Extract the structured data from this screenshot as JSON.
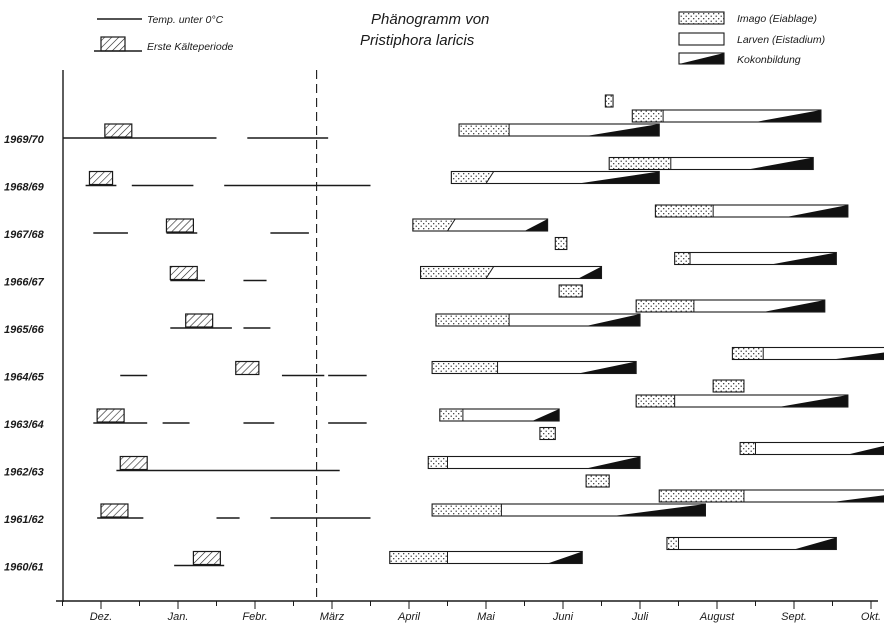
{
  "chart_data": {
    "type": "bar",
    "title": "Phänogramm von",
    "subtitle": "Pristiphora laricis",
    "xlabel": "",
    "ylabel": "",
    "x_unit": "month (Dez. = 0)",
    "xlim": [
      -0.6,
      10.7
    ],
    "months": [
      "Dez.",
      "Jan.",
      "Febr.",
      "März",
      "April",
      "Mai",
      "Juni",
      "Juli",
      "August",
      "Sept.",
      "Okt."
    ],
    "divider_at": 2.8,
    "legend": {
      "temp": "Temp. unter 0°C",
      "kaelte": "Erste Kälteperiode",
      "imago": "Imago (Eiablage)",
      "larven": "Larven (Eistadium)",
      "kokon": "Kokonbildung"
    },
    "series": [
      {
        "label": "1969/70",
        "temp": [
          [
            -0.5,
            1.5
          ],
          [
            1.9,
            2.95
          ]
        ],
        "kaelte": [
          0.05,
          0.4
        ],
        "gens": [
          {
            "row": 0,
            "start": 4.65,
            "split": 5.3,
            "diag": 5.3,
            "ramp": 6.3,
            "end": 7.25
          },
          {
            "row": 1,
            "start": 6.9,
            "split": 7.3,
            "diag": 7.3,
            "ramp": 8.5,
            "end": 9.35
          }
        ],
        "extra": [
          [
            6.55,
            6.65
          ]
        ]
      },
      {
        "label": "1968/69",
        "temp": [
          [
            -0.2,
            0.2
          ],
          [
            0.4,
            1.2
          ],
          [
            1.6,
            3.5
          ]
        ],
        "kaelte": [
          -0.15,
          0.15
        ],
        "gens": [
          {
            "row": 0,
            "start": 4.55,
            "split": 5.1,
            "diag": 5.0,
            "ramp": 6.2,
            "end": 7.25
          },
          {
            "row": 1,
            "start": 6.6,
            "split": 7.4,
            "diag": 7.4,
            "ramp": 8.4,
            "end": 9.25
          }
        ],
        "extra": []
      },
      {
        "label": "1967/68",
        "temp": [
          [
            -0.1,
            0.35
          ],
          [
            0.85,
            1.25
          ],
          [
            2.2,
            2.7
          ]
        ],
        "kaelte": [
          0.85,
          1.2
        ],
        "gens": [
          {
            "row": 0,
            "start": 4.05,
            "split": 4.6,
            "diag": 4.5,
            "ramp": 5.5,
            "end": 5.8
          },
          {
            "row": 1,
            "start": 7.2,
            "split": 7.95,
            "diag": 7.95,
            "ramp": 8.9,
            "end": 9.7
          }
        ],
        "extra": []
      },
      {
        "label": "1966/67",
        "temp": [
          [
            0.9,
            1.35
          ],
          [
            1.85,
            2.15
          ]
        ],
        "kaelte": [
          0.9,
          1.25
        ],
        "gens": [
          {
            "row": 0,
            "start": 4.15,
            "split": 5.1,
            "diag": 5.0,
            "ramp": 6.2,
            "end": 6.5
          },
          {
            "row": 1,
            "start": 7.45,
            "split": 7.65,
            "diag": 7.65,
            "ramp": 8.7,
            "end": 9.55
          }
        ],
        "extra": [
          [
            5.9,
            6.05
          ]
        ]
      },
      {
        "label": "1965/66",
        "temp": [
          [
            0.9,
            1.7
          ],
          [
            1.85,
            2.2
          ]
        ],
        "kaelte": [
          1.1,
          1.45
        ],
        "gens": [
          {
            "row": 0,
            "start": 4.35,
            "split": 5.3,
            "diag": 5.3,
            "ramp": 6.3,
            "end": 7.0
          },
          {
            "row": 1,
            "start": 6.95,
            "split": 7.7,
            "diag": 7.7,
            "ramp": 8.6,
            "end": 9.4
          }
        ],
        "extra": [
          [
            5.95,
            6.25
          ]
        ]
      },
      {
        "label": "1964/65",
        "temp": [
          [
            0.25,
            0.6
          ],
          [
            2.35,
            2.9
          ],
          [
            2.95,
            3.45
          ]
        ],
        "kaelte": [
          1.75,
          2.05
        ],
        "gens": [
          {
            "row": 0,
            "start": 4.3,
            "split": 5.15,
            "diag": 5.15,
            "ramp": 6.2,
            "end": 6.95
          },
          {
            "row": 1,
            "start": 8.2,
            "split": 8.6,
            "diag": 8.6,
            "ramp": 9.5,
            "end": 10.65
          }
        ],
        "extra": []
      },
      {
        "label": "1963/64",
        "temp": [
          [
            -0.1,
            0.6
          ],
          [
            0.8,
            1.15
          ],
          [
            1.85,
            2.25
          ],
          [
            2.95,
            3.45
          ]
        ],
        "kaelte": [
          -0.05,
          0.3
        ],
        "gens": [
          {
            "row": 0,
            "start": 4.4,
            "split": 4.7,
            "diag": 4.7,
            "ramp": 5.6,
            "end": 5.95
          },
          {
            "row": 1,
            "start": 6.95,
            "split": 7.45,
            "diag": 7.45,
            "ramp": 8.8,
            "end": 9.7
          }
        ],
        "extra": [
          [
            7.95,
            8.35
          ]
        ]
      },
      {
        "label": "1962/63",
        "temp": [
          [
            0.2,
            3.1
          ]
        ],
        "kaelte": [
          0.25,
          0.6
        ],
        "gens": [
          {
            "row": 0,
            "start": 4.25,
            "split": 4.5,
            "diag": 4.5,
            "ramp": 6.3,
            "end": 7.0
          },
          {
            "row": 1,
            "start": 8.3,
            "split": 8.5,
            "diag": 8.5,
            "ramp": 9.7,
            "end": 10.35
          }
        ],
        "extra": [
          [
            5.7,
            5.9
          ]
        ]
      },
      {
        "label": "1961/62",
        "temp": [
          [
            -0.05,
            0.55
          ],
          [
            1.5,
            1.8
          ],
          [
            2.2,
            3.5
          ]
        ],
        "kaelte": [
          0.0,
          0.35
        ],
        "gens": [
          {
            "row": 0,
            "start": 4.3,
            "split": 5.2,
            "diag": 5.2,
            "ramp": 6.65,
            "end": 7.85
          },
          {
            "row": 1,
            "start": 7.25,
            "split": 8.35,
            "diag": 8.35,
            "ramp": 9.5,
            "end": 10.7
          }
        ],
        "extra": [
          [
            6.3,
            6.6
          ]
        ]
      },
      {
        "label": "1960/61",
        "temp": [
          [
            0.95,
            1.6
          ]
        ],
        "kaelte": [
          1.2,
          1.55
        ],
        "gens": [
          {
            "row": 0,
            "start": 3.75,
            "split": 4.5,
            "diag": 4.5,
            "ramp": 5.8,
            "end": 6.25
          },
          {
            "row": 1,
            "start": 7.35,
            "split": 7.5,
            "diag": 7.5,
            "ramp": 9.0,
            "end": 9.55
          }
        ],
        "extra": []
      }
    ]
  }
}
